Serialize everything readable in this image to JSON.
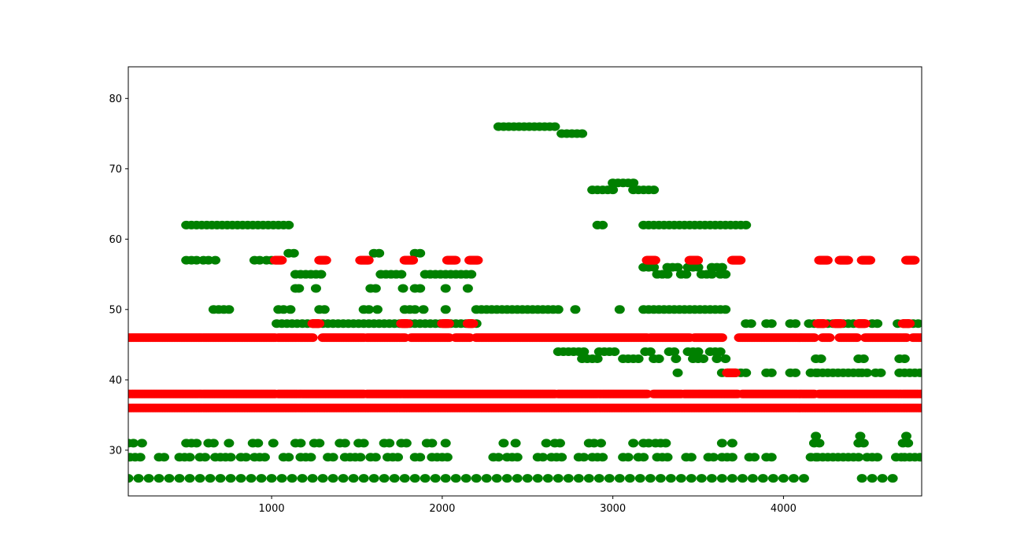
{
  "chart_data": {
    "type": "scatter",
    "title": "",
    "xlabel": "",
    "ylabel": "",
    "xlim": [
      160,
      4810
    ],
    "ylim": [
      23.5,
      84.5
    ],
    "x_ticks": [
      1000,
      2000,
      3000,
      4000
    ],
    "y_ticks": [
      30,
      40,
      50,
      60,
      70,
      80
    ],
    "grid": false,
    "legend": "none",
    "colors": {
      "green": "#008000",
      "red": "#ff0000"
    },
    "series": [
      {
        "color": "green",
        "segments": [
          [
            160,
            4170,
            26,
            60
          ],
          [
            4460,
            4650,
            26,
            60
          ],
          [
            170,
            240,
            29,
            30
          ],
          [
            340,
            380,
            29,
            30
          ],
          [
            460,
            520,
            29,
            30
          ],
          [
            580,
            620,
            29,
            30
          ],
          [
            670,
            760,
            29,
            30
          ],
          [
            820,
            860,
            29,
            30
          ],
          [
            900,
            980,
            29,
            30
          ],
          [
            1070,
            1110,
            29,
            30
          ],
          [
            1170,
            1250,
            29,
            30
          ],
          [
            1330,
            1370,
            29,
            30
          ],
          [
            1430,
            1520,
            29,
            30
          ],
          [
            1580,
            1620,
            29,
            30
          ],
          [
            1680,
            1760,
            29,
            30
          ],
          [
            1840,
            1880,
            29,
            30
          ],
          [
            1940,
            2030,
            29,
            30
          ],
          [
            2300,
            2340,
            29,
            30
          ],
          [
            2380,
            2440,
            29,
            30
          ],
          [
            2560,
            2600,
            29,
            30
          ],
          [
            2640,
            2710,
            29,
            30
          ],
          [
            2800,
            2840,
            29,
            30
          ],
          [
            2880,
            2950,
            29,
            30
          ],
          [
            3060,
            3100,
            29,
            30
          ],
          [
            3150,
            3200,
            29,
            30
          ],
          [
            3260,
            3320,
            29,
            30
          ],
          [
            3430,
            3470,
            29,
            30
          ],
          [
            3560,
            3600,
            29,
            30
          ],
          [
            3640,
            3720,
            29,
            30
          ],
          [
            3800,
            3840,
            29,
            30
          ],
          [
            3900,
            3950,
            29,
            30
          ],
          [
            4160,
            4200,
            29,
            30
          ],
          [
            4200,
            4460,
            29,
            30
          ],
          [
            4490,
            4550,
            29,
            30
          ],
          [
            4660,
            4700,
            29,
            30
          ],
          [
            4710,
            4810,
            29,
            30
          ],
          [
            160,
            200,
            31,
            30
          ],
          [
            240,
            260,
            31,
            30
          ],
          [
            500,
            560,
            31,
            30
          ],
          [
            630,
            680,
            31,
            30
          ],
          [
            750,
            770,
            31,
            30
          ],
          [
            890,
            930,
            31,
            30
          ],
          [
            1010,
            1030,
            31,
            30
          ],
          [
            1140,
            1180,
            31,
            30
          ],
          [
            1250,
            1280,
            31,
            30
          ],
          [
            1400,
            1440,
            31,
            30
          ],
          [
            1510,
            1540,
            31,
            30
          ],
          [
            1660,
            1690,
            31,
            30
          ],
          [
            1760,
            1790,
            31,
            30
          ],
          [
            1910,
            1950,
            31,
            30
          ],
          [
            2020,
            2040,
            31,
            30
          ],
          [
            2360,
            2380,
            31,
            30
          ],
          [
            2430,
            2450,
            31,
            30
          ],
          [
            2610,
            2630,
            31,
            30
          ],
          [
            2660,
            2690,
            31,
            30
          ],
          [
            2860,
            2890,
            31,
            30
          ],
          [
            2930,
            2950,
            31,
            30
          ],
          [
            3120,
            3140,
            31,
            30
          ],
          [
            3180,
            3220,
            31,
            30
          ],
          [
            3250,
            3280,
            31,
            30
          ],
          [
            3310,
            3330,
            31,
            30
          ],
          [
            3640,
            3660,
            31,
            30
          ],
          [
            3700,
            3720,
            31,
            30
          ],
          [
            4180,
            4230,
            31,
            30
          ],
          [
            4440,
            4490,
            31,
            30
          ],
          [
            4700,
            4750,
            31,
            30
          ],
          [
            4190,
            4200,
            32,
            30
          ],
          [
            4450,
            4460,
            32,
            30
          ],
          [
            4720,
            4730,
            32,
            30
          ],
          [
            3380,
            3400,
            41,
            30
          ],
          [
            3640,
            3680,
            41,
            30
          ],
          [
            3720,
            3780,
            41,
            30
          ],
          [
            3900,
            3930,
            41,
            30
          ],
          [
            4040,
            4080,
            41,
            30
          ],
          [
            4160,
            4200,
            41,
            30
          ],
          [
            4200,
            4440,
            41,
            30
          ],
          [
            4460,
            4500,
            41,
            30
          ],
          [
            4540,
            4570,
            41,
            30
          ],
          [
            4680,
            4810,
            41,
            30
          ],
          [
            2820,
            2920,
            43,
            30
          ],
          [
            3060,
            3150,
            43,
            30
          ],
          [
            3240,
            3290,
            43,
            30
          ],
          [
            3370,
            3390,
            43,
            30
          ],
          [
            3470,
            3530,
            43,
            30
          ],
          [
            3610,
            3630,
            43,
            30
          ],
          [
            3660,
            3680,
            43,
            30
          ],
          [
            4190,
            4230,
            43,
            30
          ],
          [
            4440,
            4490,
            43,
            30
          ],
          [
            4680,
            4730,
            43,
            30
          ],
          [
            2680,
            2830,
            44,
            30
          ],
          [
            2920,
            3030,
            44,
            30
          ],
          [
            3190,
            3230,
            44,
            30
          ],
          [
            3330,
            3380,
            44,
            30
          ],
          [
            3440,
            3500,
            44,
            30
          ],
          [
            3570,
            3640,
            44,
            30
          ],
          [
            1030,
            2220,
            48,
            30
          ],
          [
            3780,
            3820,
            48,
            30
          ],
          [
            3900,
            3950,
            48,
            30
          ],
          [
            4040,
            4080,
            48,
            30
          ],
          [
            4150,
            4200,
            48,
            30
          ],
          [
            4200,
            4440,
            48,
            30
          ],
          [
            4520,
            4570,
            48,
            30
          ],
          [
            4670,
            4810,
            48,
            30
          ],
          [
            660,
            770,
            50,
            30
          ],
          [
            1040,
            1080,
            50,
            30
          ],
          [
            1110,
            1130,
            50,
            30
          ],
          [
            1280,
            1320,
            50,
            30
          ],
          [
            1540,
            1590,
            50,
            30
          ],
          [
            1620,
            1640,
            50,
            30
          ],
          [
            1780,
            1860,
            50,
            30
          ],
          [
            1890,
            1910,
            50,
            30
          ],
          [
            2020,
            2040,
            50,
            30
          ],
          [
            2200,
            2650,
            50,
            30
          ],
          [
            2680,
            2700,
            50,
            30
          ],
          [
            2780,
            2800,
            50,
            30
          ],
          [
            3040,
            3060,
            50,
            30
          ],
          [
            3180,
            3680,
            50,
            30
          ],
          [
            1140,
            1150,
            53,
            30
          ],
          [
            1160,
            1170,
            53,
            30
          ],
          [
            1260,
            1280,
            53,
            30
          ],
          [
            1580,
            1630,
            53,
            30
          ],
          [
            1770,
            1790,
            53,
            30
          ],
          [
            1840,
            1890,
            53,
            30
          ],
          [
            2020,
            2040,
            53,
            30
          ],
          [
            2150,
            2170,
            53,
            30
          ],
          [
            1140,
            1290,
            55,
            30
          ],
          [
            1640,
            1770,
            55,
            30
          ],
          [
            1900,
            2040,
            55,
            30
          ],
          [
            2050,
            2180,
            55,
            30
          ],
          [
            3260,
            3330,
            55,
            30
          ],
          [
            3400,
            3450,
            55,
            30
          ],
          [
            3520,
            3580,
            55,
            30
          ],
          [
            3630,
            3670,
            55,
            30
          ],
          [
            3180,
            3250,
            56,
            30
          ],
          [
            3320,
            3390,
            56,
            30
          ],
          [
            3440,
            3500,
            56,
            30
          ],
          [
            3580,
            3640,
            56,
            30
          ],
          [
            500,
            540,
            57,
            30
          ],
          [
            560,
            580,
            57,
            30
          ],
          [
            600,
            640,
            57,
            30
          ],
          [
            670,
            690,
            57,
            30
          ],
          [
            900,
            950,
            57,
            30
          ],
          [
            970,
            1010,
            57,
            30
          ],
          [
            1100,
            1130,
            58,
            30
          ],
          [
            1600,
            1650,
            58,
            30
          ],
          [
            1840,
            1880,
            58,
            30
          ],
          [
            500,
            1120,
            62,
            30
          ],
          [
            2910,
            2940,
            62,
            30
          ],
          [
            3180,
            3800,
            62,
            30
          ],
          [
            2880,
            3000,
            67,
            30
          ],
          [
            3120,
            3240,
            67,
            30
          ],
          [
            3000,
            3120,
            68,
            30
          ],
          [
            2700,
            2830,
            75,
            30
          ],
          [
            2330,
            2660,
            76,
            30
          ]
        ]
      },
      {
        "color": "red",
        "segments": [
          [
            160,
            4810,
            36,
            10
          ],
          [
            160,
            1020,
            38,
            10
          ],
          [
            1040,
            1540,
            38,
            10
          ],
          [
            1560,
            2660,
            38,
            10
          ],
          [
            2680,
            3200,
            38,
            10
          ],
          [
            3240,
            3400,
            38,
            10
          ],
          [
            3420,
            3730,
            38,
            10
          ],
          [
            3760,
            4180,
            38,
            10
          ],
          [
            4210,
            4810,
            38,
            10
          ],
          [
            160,
            1020,
            46,
            10
          ],
          [
            1040,
            1240,
            46,
            10
          ],
          [
            1300,
            1540,
            46,
            10
          ],
          [
            1560,
            1780,
            46,
            10
          ],
          [
            1820,
            2040,
            46,
            10
          ],
          [
            2080,
            2160,
            46,
            10
          ],
          [
            2200,
            3200,
            46,
            10
          ],
          [
            3220,
            3450,
            46,
            10
          ],
          [
            3480,
            3640,
            46,
            10
          ],
          [
            3740,
            4180,
            46,
            10
          ],
          [
            4230,
            4270,
            46,
            10
          ],
          [
            4330,
            4430,
            46,
            10
          ],
          [
            4480,
            4720,
            46,
            10
          ],
          [
            4760,
            4810,
            46,
            10
          ],
          [
            1240,
            1280,
            48,
            3
          ],
          [
            1760,
            1800,
            48,
            3
          ],
          [
            2000,
            2040,
            48,
            3
          ],
          [
            2150,
            2180,
            48,
            3
          ],
          [
            4200,
            4240,
            48,
            3
          ],
          [
            4300,
            4340,
            48,
            3
          ],
          [
            4440,
            4480,
            48,
            3
          ],
          [
            4700,
            4740,
            48,
            3
          ],
          [
            3670,
            3720,
            41,
            3
          ],
          [
            1020,
            1060,
            57,
            3
          ],
          [
            1280,
            1320,
            57,
            3
          ],
          [
            1520,
            1570,
            57,
            3
          ],
          [
            1780,
            1830,
            57,
            3
          ],
          [
            2030,
            2080,
            57,
            3
          ],
          [
            2160,
            2210,
            57,
            3
          ],
          [
            3200,
            3250,
            57,
            3
          ],
          [
            3450,
            3500,
            57,
            3
          ],
          [
            3700,
            3750,
            57,
            3
          ],
          [
            4210,
            4260,
            57,
            3
          ],
          [
            4330,
            4380,
            57,
            3
          ],
          [
            4460,
            4510,
            57,
            3
          ],
          [
            4720,
            4770,
            57,
            3
          ]
        ]
      }
    ]
  }
}
